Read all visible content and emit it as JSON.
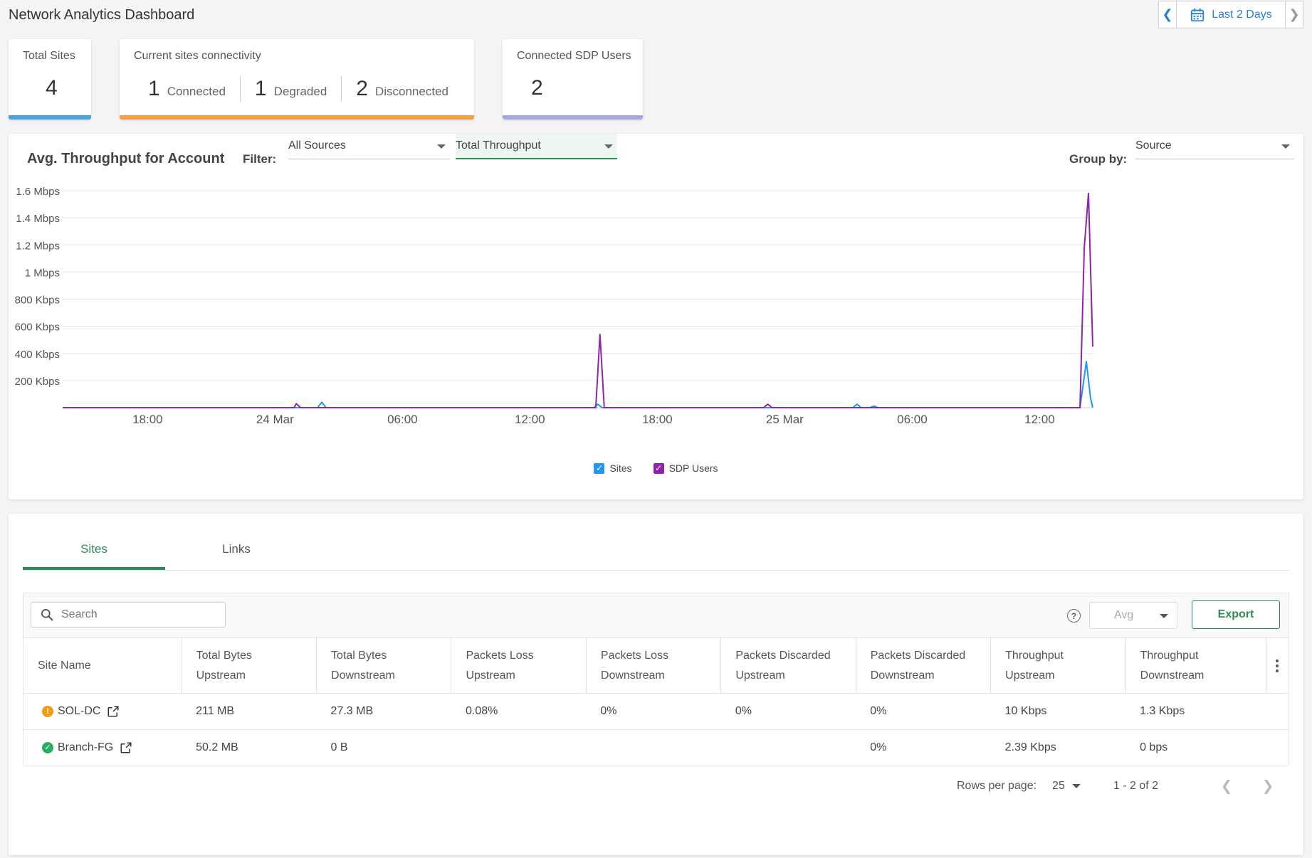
{
  "header": {
    "title": "Network Analytics Dashboard",
    "date_range_label": "Last 2 Days",
    "prev_icon": "chevron-left-icon",
    "next_icon": "chevron-right-icon",
    "calendar_icon": "calendar-icon"
  },
  "kpis": {
    "total_sites": {
      "label": "Total Sites",
      "value": "4"
    },
    "connectivity": {
      "label": "Current sites connectivity",
      "items": [
        {
          "count": "1",
          "label": "Connected"
        },
        {
          "count": "1",
          "label": "Degraded"
        },
        {
          "count": "2",
          "label": "Disconnected"
        }
      ]
    },
    "sdp_users": {
      "label": "Connected SDP Users",
      "value": "2"
    }
  },
  "throughput": {
    "title": "Avg. Throughput for Account",
    "filter_label": "Filter:",
    "filter_source": "All Sources",
    "filter_metric": "Total Throughput",
    "group_by_label": "Group by:",
    "group_by_value": "Source"
  },
  "chart_data": {
    "type": "line",
    "title": "Avg. Throughput for Account",
    "xlabel": "",
    "ylabel": "",
    "y_unit": "Kbps",
    "ylim": [
      0,
      1600
    ],
    "y_ticks": [
      200,
      400,
      600,
      800,
      1000,
      1200,
      1400,
      1600
    ],
    "y_tick_labels": [
      "200 Kbps",
      "400 Kbps",
      "600 Kbps",
      "800 Kbps",
      "1 Mbps",
      "1.2 Mbps",
      "1.4 Mbps",
      "1.6 Mbps"
    ],
    "x_unit": "hours since 23 Mar 14:00",
    "xlim": [
      0,
      48.5
    ],
    "x_ticks": [
      4,
      10,
      16,
      22,
      28,
      34,
      40,
      46
    ],
    "x_tick_labels": [
      "18:00",
      "24 Mar",
      "06:00",
      "12:00",
      "18:00",
      "25 Mar",
      "06:00",
      "12:00"
    ],
    "grid": true,
    "legend": "bottom-center",
    "series": [
      {
        "name": "Sites",
        "color": "#2196f3",
        "x": [
          0,
          10.8,
          11,
          12,
          12.2,
          12.4,
          13,
          25,
          25.2,
          25.4,
          30,
          33,
          37.2,
          37.4,
          37.6,
          38,
          38.2,
          38.4,
          47.9,
          48.2,
          48.4,
          48.5
        ],
        "y": [
          0,
          0,
          0,
          0,
          40,
          0,
          0,
          0,
          25,
          0,
          0,
          0,
          0,
          25,
          0,
          0,
          12,
          0,
          0,
          340,
          70,
          0
        ]
      },
      {
        "name": "SDP Users",
        "color": "#8e24aa",
        "x": [
          0,
          10.9,
          11,
          11.2,
          11.4,
          25.1,
          25.3,
          25.5,
          25.7,
          33,
          33.2,
          33.4,
          47.9,
          48.1,
          48.3,
          48.5
        ],
        "y": [
          0,
          0,
          30,
          0,
          0,
          0,
          540,
          0,
          0,
          0,
          25,
          0,
          0,
          1180,
          1580,
          450
        ]
      }
    ]
  },
  "table": {
    "tabs": [
      "Sites",
      "Links"
    ],
    "search_placeholder": "Search",
    "aggregate": "Avg",
    "export_label": "Export",
    "help_icon": "help-icon",
    "columns": [
      "Site Name",
      "Total Bytes Upstream",
      "Total Bytes Downstream",
      "Packets Loss Upstream",
      "Packets Loss Downstream",
      "Packets Discarded Upstream",
      "Packets Discarded Downstream",
      "Throughput Upstream",
      "Throughput Downstream"
    ],
    "rows": [
      {
        "status": "warning",
        "status_color": "#f39c12",
        "cells": [
          "SOL-DC",
          "211 MB",
          "27.3 MB",
          "0.08%",
          "0%",
          "0%",
          "0%",
          "10 Kbps",
          "1.3 Kbps"
        ]
      },
      {
        "status": "ok",
        "status_color": "#27ae60",
        "cells": [
          "Branch-FG",
          "50.2 MB",
          "0 B",
          "",
          "",
          "",
          "0%",
          "2.39 Kbps",
          "0 bps"
        ]
      }
    ],
    "pagination": {
      "rows_per_page_label": "Rows per page:",
      "rows_per_page": "25",
      "range": "1 - 2 of 2"
    }
  }
}
